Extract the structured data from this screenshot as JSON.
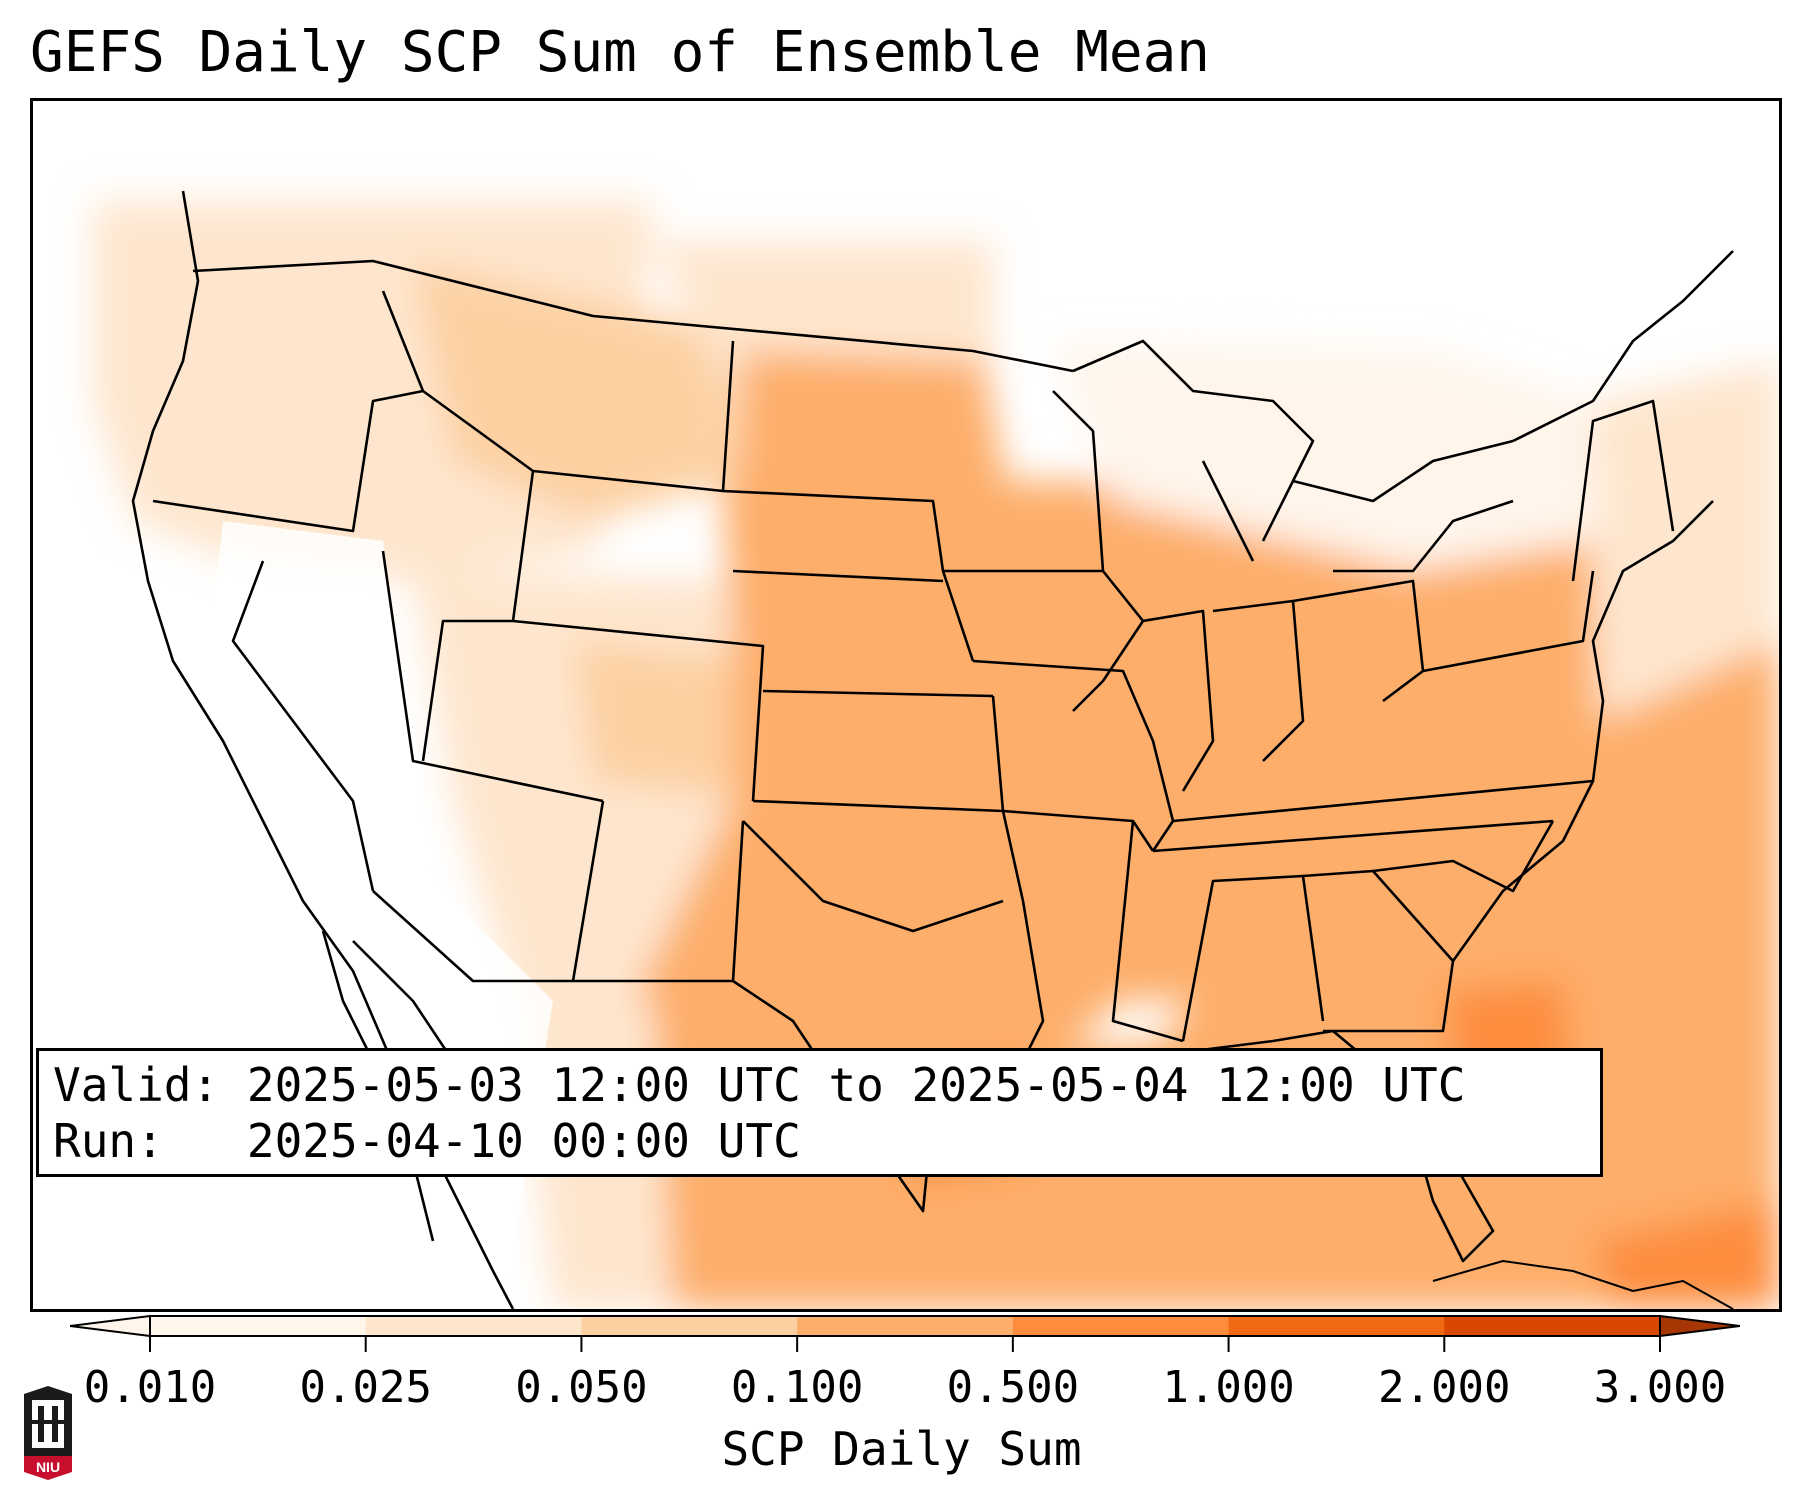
{
  "title": "GEFS Daily SCP Sum of Ensemble Mean",
  "info": {
    "valid_label": "Valid:",
    "valid_value": "2025-05-03 12:00 UTC to 2025-05-04 12:00 UTC",
    "run_label": "Run:",
    "run_value": "2025-04-10 00:00 UTC"
  },
  "colorbar": {
    "label": "SCP Daily Sum",
    "ticks": [
      "0.010",
      "0.025",
      "0.050",
      "0.100",
      "0.500",
      "1.000",
      "2.000",
      "3.000"
    ],
    "colors": [
      "#fff5eb",
      "#fee6ce",
      "#fdd0a2",
      "#fdae6b",
      "#fd8d3c",
      "#f16913",
      "#d94801",
      "#a63603"
    ],
    "extend": "both"
  },
  "logo": {
    "text": "NIU"
  }
}
